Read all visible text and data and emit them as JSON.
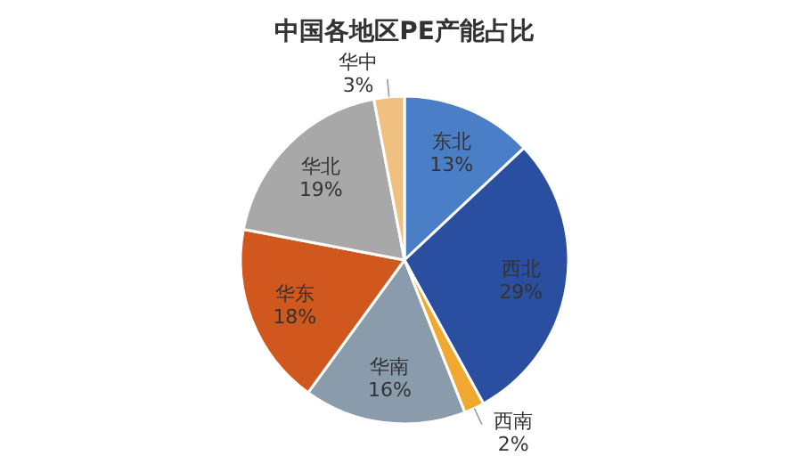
{
  "chart_data": {
    "type": "pie",
    "title": "中国各地区PE产能占比",
    "categories": [
      "东北",
      "西北",
      "西南",
      "华南",
      "华东",
      "华北",
      "华中"
    ],
    "values": [
      13,
      29,
      2,
      16,
      18,
      19,
      3
    ],
    "value_labels": [
      "13%",
      "29%",
      "2%",
      "16%",
      "18%",
      "19%",
      "3%"
    ],
    "colors": [
      "#4a7fc8",
      "#2a4ea0",
      "#f0a830",
      "#8a9bab",
      "#d0581e",
      "#a8a8a8",
      "#f0c080"
    ]
  }
}
